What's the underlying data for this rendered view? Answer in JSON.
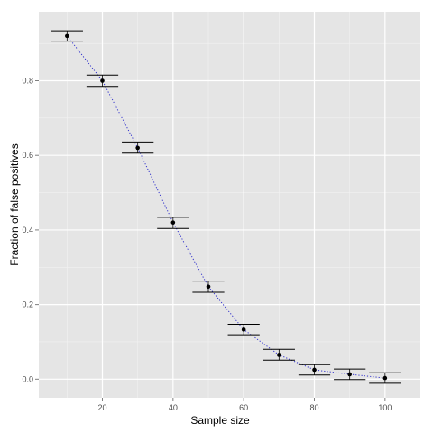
{
  "chart_data": {
    "type": "scatter",
    "title": "",
    "xlabel": "Sample size",
    "ylabel": "Fraction of false positives",
    "xlim": [
      2,
      110
    ],
    "ylim": [
      -0.05,
      0.985
    ],
    "xticks": [
      20,
      40,
      60,
      80,
      100
    ],
    "xtick_labels": [
      "20",
      "40",
      "60",
      "80",
      "100"
    ],
    "yticks": [
      0.0,
      0.2,
      0.4,
      0.6,
      0.8
    ],
    "ytick_labels": [
      "0.0",
      "0.2",
      "0.4",
      "0.6",
      "0.8"
    ],
    "grid": true,
    "legend": "none",
    "points": [
      {
        "x": 10,
        "y": 0.92,
        "ymin": 0.906,
        "ymax": 0.934
      },
      {
        "x": 20,
        "y": 0.8,
        "ymin": 0.785,
        "ymax": 0.815
      },
      {
        "x": 30,
        "y": 0.62,
        "ymin": 0.606,
        "ymax": 0.636
      },
      {
        "x": 40,
        "y": 0.42,
        "ymin": 0.404,
        "ymax": 0.434
      },
      {
        "x": 50,
        "y": 0.248,
        "ymin": 0.233,
        "ymax": 0.263
      },
      {
        "x": 60,
        "y": 0.133,
        "ymin": 0.119,
        "ymax": 0.147
      },
      {
        "x": 70,
        "y": 0.065,
        "ymin": 0.051,
        "ymax": 0.08
      },
      {
        "x": 80,
        "y": 0.025,
        "ymin": 0.011,
        "ymax": 0.039
      },
      {
        "x": 90,
        "y": 0.013,
        "ymin": -0.001,
        "ymax": 0.027
      },
      {
        "x": 100,
        "y": 0.003,
        "ymin": -0.011,
        "ymax": 0.017
      }
    ],
    "colors": {
      "panel": "#e5e5e5",
      "grid_major": "#ffffff",
      "grid_minor": "#f2f2f2",
      "points": "#000000",
      "errorbars": "#000000",
      "trend_line": "#3333cc"
    }
  }
}
